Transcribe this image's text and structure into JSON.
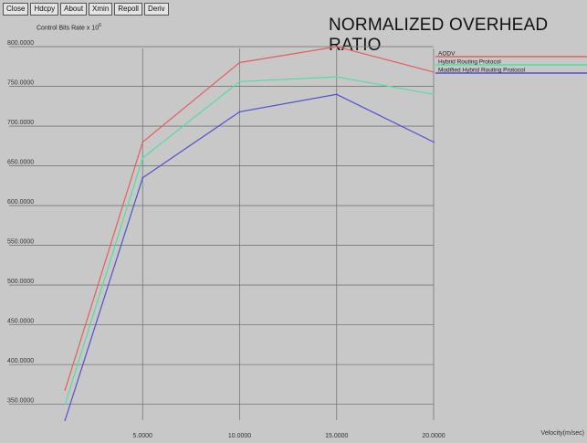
{
  "toolbar": {
    "buttons": [
      "Close",
      "Hdcpy",
      "About",
      "Xmin",
      "Repoll",
      "Deriv"
    ]
  },
  "chart_data": {
    "type": "line",
    "title": "NORMALIZED OVERHEAD RATIO",
    "ylabel": "Control Bits Rate x 10",
    "ylabel_exponent": "6",
    "xlabel": "Velocity(m/sec)",
    "x_ticks": [
      5,
      10,
      15,
      20
    ],
    "x_tick_labels": [
      "5.0000",
      "10.0000",
      "15.0000",
      "20.0000"
    ],
    "y_ticks": [
      350,
      400,
      450,
      500,
      550,
      600,
      650,
      700,
      750,
      800
    ],
    "y_tick_labels": [
      "350.0000",
      "400.0000",
      "450.0000",
      "500.0000",
      "550.0000",
      "600.0000",
      "650.0000",
      "700.0000",
      "750.0000",
      "800.0000"
    ],
    "xlim": [
      0,
      20
    ],
    "ylim": [
      330,
      815
    ],
    "x": [
      1,
      5,
      10,
      15,
      20
    ],
    "grid": true,
    "legend_position": "top-right",
    "series": [
      {
        "name": "AODV",
        "color": "#e06060",
        "values": [
          368,
          680,
          780,
          800,
          768
        ]
      },
      {
        "name": "Hybrid Routing Protocol",
        "color": "#55dda0",
        "values": [
          350,
          660,
          756,
          762,
          740
        ]
      },
      {
        "name": "Modified Hybrid Routing Protocol",
        "color": "#5050d0",
        "values": [
          330,
          635,
          718,
          740,
          680
        ]
      }
    ]
  }
}
